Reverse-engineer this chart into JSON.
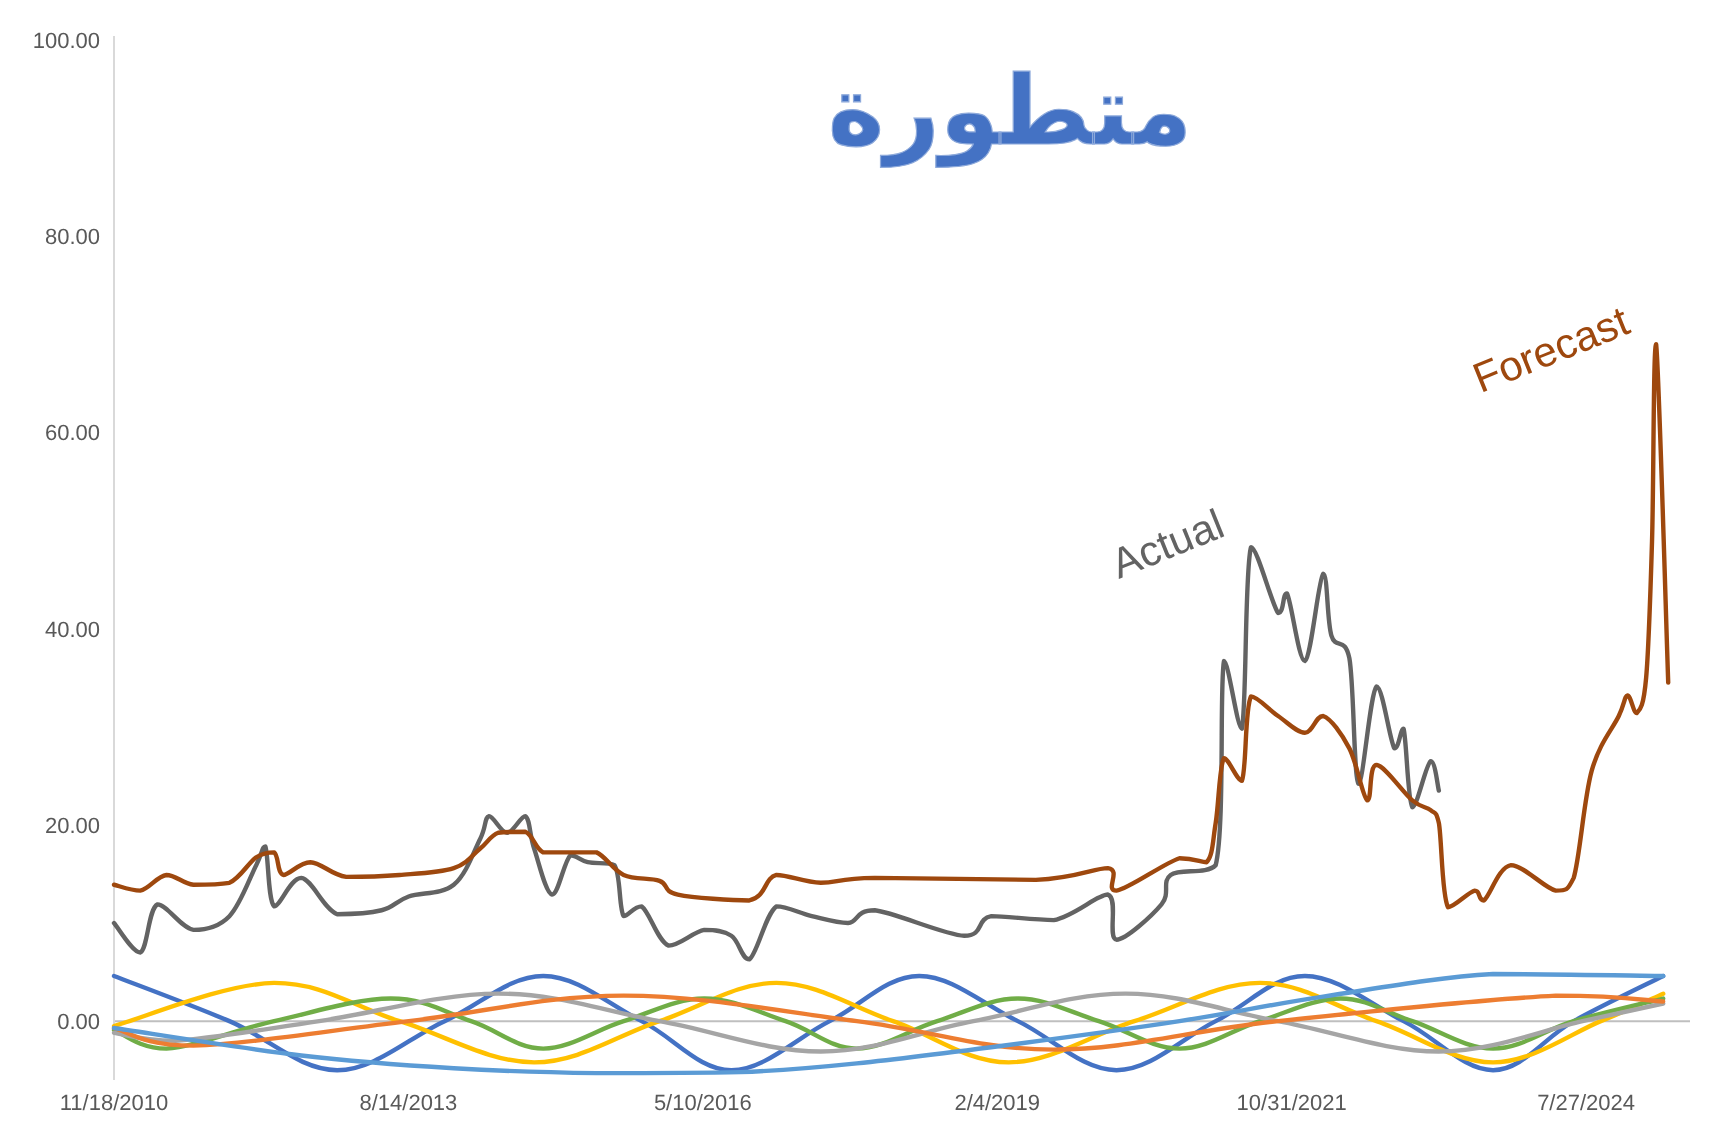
{
  "chart_data": {
    "type": "line",
    "title": "متطورة",
    "xlim": [
      "2010-11-18",
      "2025-07-15"
    ],
    "xticks": [
      {
        "value": "2010-11-18",
        "label": "11/18/2010"
      },
      {
        "value": "2013-08-14",
        "label": "8/14/2013"
      },
      {
        "value": "2016-05-10",
        "label": "5/10/2016"
      },
      {
        "value": "2019-02-04",
        "label": "2/4/2019"
      },
      {
        "value": "2021-10-31",
        "label": "10/31/2021"
      },
      {
        "value": "2024-07-27",
        "label": "7/27/2024"
      }
    ],
    "ylim": [
      -6,
      100
    ],
    "yticks": [
      {
        "value": 0,
        "label": "0.00"
      },
      {
        "value": 20,
        "label": "20.00"
      },
      {
        "value": 40,
        "label": "40.00"
      },
      {
        "value": 60,
        "label": "60.00"
      },
      {
        "value": 80,
        "label": "80.00"
      },
      {
        "value": 100,
        "label": "100.00"
      }
    ],
    "series": [
      {
        "color": "#4472c4",
        "x": [
          "2010-11-18",
          "2011-12",
          "2012-12",
          "2013-12",
          "2014-11",
          "2015-10",
          "2016-08",
          "2017-07",
          "2018-05",
          "2019-04",
          "2020-03",
          "2021-02",
          "2021-12",
          "2022-11",
          "2023-09",
          "2024-06",
          "2025-04"
        ],
        "values": [
          4.6,
          0,
          -5,
          0,
          4.6,
          0,
          -5,
          0,
          4.6,
          0,
          -5,
          0,
          4.6,
          0,
          -5,
          0,
          4.6
        ]
      },
      {
        "color": "#ffc000",
        "x": [
          "2010-11-18",
          "2012-05",
          "2013-07",
          "2014-10",
          "2015-12",
          "2017-01",
          "2018-02",
          "2019-03",
          "2020-05",
          "2021-07",
          "2022-08",
          "2023-09",
          "2024-09",
          "2025-04"
        ],
        "values": [
          -0.5,
          3.9,
          0,
          -4.2,
          0,
          3.9,
          0,
          -4.2,
          0,
          3.9,
          0,
          -4.2,
          0,
          2.8
        ]
      },
      {
        "color": "#70ad47",
        "x": [
          "2010-11-18",
          "2011-05",
          "2012-05",
          "2013-06",
          "2014-03",
          "2014-11",
          "2015-08",
          "2016-05",
          "2017-02",
          "2017-10",
          "2018-07",
          "2019-04",
          "2020-01",
          "2020-10",
          "2021-07",
          "2022-04",
          "2022-12",
          "2023-09",
          "2024-06",
          "2025-04"
        ],
        "values": [
          -0.9,
          -2.8,
          0,
          2.3,
          0,
          -2.8,
          0,
          2.3,
          0,
          -2.8,
          0,
          2.3,
          0,
          -2.8,
          0,
          2.3,
          0,
          -2.8,
          0,
          2.3
        ]
      },
      {
        "color": "#a5a5a5",
        "x": [
          "2010-11-18",
          "2011-06",
          "2012-10",
          "2014-06",
          "2015-12",
          "2017-06",
          "2018-11",
          "2020-04",
          "2021-09",
          "2023-03",
          "2024-07",
          "2025-04"
        ],
        "values": [
          -1.2,
          -2.0,
          0,
          2.8,
          0,
          -3.1,
          0,
          2.8,
          0,
          -3.1,
          0,
          1.8
        ]
      },
      {
        "color": "#ed7d31",
        "x": [
          "2010-11-18",
          "2011-08",
          "2013-08",
          "2015-08",
          "2017-10",
          "2019-08",
          "2021-09",
          "2024-04",
          "2025-04"
        ],
        "values": [
          -0.7,
          -2.5,
          0,
          2.6,
          0,
          -2.9,
          0,
          2.6,
          2.0
        ]
      },
      {
        "color": "#5b9bd5",
        "x": [
          "2010-11-18",
          "2012-08",
          "2014-01",
          "2015-05",
          "2016-09",
          "2017-10",
          "2019-04",
          "2020-10",
          "2022-02",
          "2023-09",
          "2025-04"
        ],
        "values": [
          -0.7,
          -3.5,
          -4.8,
          -5.3,
          -5.2,
          -4.3,
          -2.3,
          0,
          2.5,
          4.8,
          4.6
        ]
      },
      {
        "name": "Actual",
        "color": "#636363",
        "x": [
          "2010-11-18",
          "2011-02",
          "2011-04",
          "2011-08",
          "2011-12",
          "2012-03",
          "2012-04",
          "2012-05",
          "2012-08",
          "2012-12",
          "2013-05",
          "2013-08",
          "2014-01",
          "2014-04",
          "2014-05",
          "2014-07",
          "2014-09",
          "2014-10",
          "2014-12",
          "2015-02",
          "2015-04",
          "2015-07",
          "2015-08",
          "2015-10",
          "2016-01",
          "2016-05",
          "2016-08",
          "2016-10",
          "2017-01",
          "2017-05",
          "2017-09",
          "2017-12",
          "2018-10",
          "2019-01",
          "2019-08",
          "2020-02",
          "2020-03",
          "2020-08",
          "2020-09",
          "2021-02",
          "2021-03",
          "2021-05",
          "2021-06",
          "2021-09",
          "2021-10",
          "2021-12",
          "2022-02",
          "2022-03",
          "2022-05",
          "2022-06",
          "2022-08",
          "2022-10",
          "2022-11",
          "2022-12",
          "2023-02",
          "2023-03"
        ],
        "values": [
          10.0,
          7.0,
          11.9,
          9.3,
          10.7,
          15.9,
          17.8,
          11.7,
          14.6,
          10.9,
          11.3,
          12.7,
          13.9,
          18.6,
          20.9,
          19.2,
          20.9,
          17.6,
          12.9,
          16.9,
          16.2,
          15.9,
          10.7,
          11.7,
          7.7,
          9.3,
          8.7,
          6.3,
          11.7,
          10.7,
          10.0,
          11.3,
          8.7,
          10.7,
          10.3,
          12.9,
          8.3,
          11.9,
          14.9,
          15.9,
          36.7,
          29.8,
          48.3,
          41.6,
          43.6,
          36.7,
          45.6,
          39.3,
          37.0,
          24.2,
          34.1,
          27.8,
          29.8,
          21.8,
          26.5,
          23.5
        ]
      },
      {
        "name": "Forecast",
        "color": "#9e480e",
        "x": [
          "2010-11-18",
          "2011-02",
          "2011-05",
          "2011-08",
          "2011-12",
          "2012-03",
          "2012-05",
          "2012-06",
          "2012-09",
          "2013-01",
          "2013-07",
          "2014-01",
          "2014-04",
          "2014-06",
          "2014-09",
          "2014-11",
          "2015-02",
          "2015-05",
          "2015-08",
          "2015-12",
          "2016-02",
          "2016-10",
          "2017-01",
          "2017-06",
          "2017-12",
          "2019-06",
          "2020-02",
          "2020-03",
          "2020-10",
          "2021-01",
          "2021-02",
          "2021-03",
          "2021-05",
          "2021-06",
          "2021-09",
          "2021-12",
          "2022-02",
          "2022-05",
          "2022-07",
          "2022-08",
          "2022-12",
          "2023-02",
          "2023-03",
          "2023-04",
          "2023-07",
          "2023-08",
          "2023-11",
          "2024-04",
          "2024-06",
          "2024-08",
          "2024-11",
          "2024-12",
          "2025-01",
          "2025-02-16",
          "2025-03-08",
          "2025-03-22",
          "2025-05-02"
        ],
        "values": [
          13.9,
          13.3,
          14.9,
          13.9,
          14.1,
          16.7,
          17.2,
          14.9,
          16.2,
          14.7,
          14.9,
          15.6,
          17.6,
          19.2,
          19.3,
          17.2,
          17.2,
          17.2,
          14.9,
          14.3,
          12.9,
          12.3,
          14.9,
          14.1,
          14.6,
          14.4,
          15.6,
          13.3,
          16.6,
          16.2,
          20.2,
          26.8,
          24.5,
          33.1,
          31.1,
          29.4,
          31.1,
          27.8,
          22.5,
          26.1,
          22.5,
          21.5,
          20.2,
          11.6,
          13.3,
          12.3,
          15.9,
          13.3,
          14.6,
          25.5,
          31.1,
          33.2,
          31.4,
          35.0,
          48.9,
          69.0,
          34.5
        ]
      }
    ]
  }
}
